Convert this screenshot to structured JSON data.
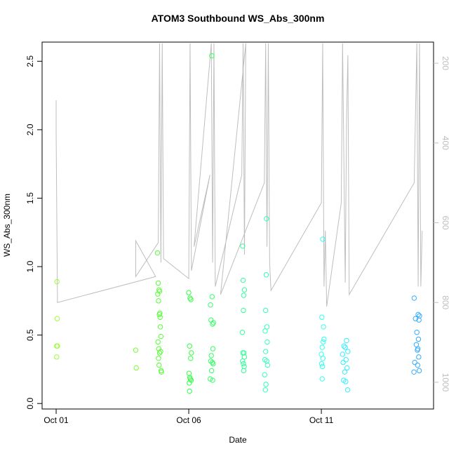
{
  "chart_data": {
    "type": "scatter",
    "title": "ATOM3 Southbound WS_Abs_300nm",
    "xlabel": "Date",
    "ylabel": "WS_Abs_300nm",
    "xlim": [
      -0.53,
      14.23
    ],
    "xticks": [
      {
        "value": 0,
        "label": "Oct 01"
      },
      {
        "value": 5,
        "label": "Oct 06"
      },
      {
        "value": 10,
        "label": "Oct 11"
      }
    ],
    "ylim": [
      -0.04,
      2.64
    ],
    "yticks": [
      {
        "value": 0,
        "label": "0.0"
      },
      0.5,
      {
        "value": 1,
        "label": "1.0"
      },
      1.5,
      {
        "value": 2,
        "label": "2.0"
      },
      2.5
    ],
    "y2lim": [
      1067,
      147
    ],
    "y2ticks": [
      200,
      400,
      600,
      800,
      1000
    ],
    "series": [
      {
        "color": "#99ff33",
        "x": [
          0.03,
          0.04,
          0.02,
          0.05,
          0.02
        ],
        "values": [
          0.89,
          0.62,
          0.42,
          0.42,
          0.34
        ]
      },
      {
        "color": "#77ff33",
        "x": [
          3.0,
          3.02
        ],
        "values": [
          0.39,
          0.26
        ]
      },
      {
        "color": "#55ff33",
        "x": [
          3.82,
          3.85,
          3.88,
          3.9,
          3.83,
          3.86,
          3.91,
          3.92,
          3.89,
          3.93,
          3.95,
          3.84,
          3.87,
          3.94,
          3.9,
          3.86,
          3.88,
          3.96,
          3.97
        ],
        "values": [
          1.1,
          0.88,
          0.83,
          0.82,
          0.8,
          0.75,
          0.66,
          0.63,
          0.65,
          0.56,
          0.49,
          0.45,
          0.4,
          0.38,
          0.37,
          0.33,
          0.28,
          0.24,
          0.23
        ]
      },
      {
        "color": "#33ff44",
        "x": [
          5.0,
          5.05,
          5.08,
          5.03,
          5.07,
          5.01,
          5.04,
          5.09,
          5.06,
          5.02,
          5.03,
          5.1
        ],
        "values": [
          0.81,
          0.77,
          0.76,
          0.42,
          0.33,
          0.22,
          0.19,
          0.17,
          0.18,
          0.15,
          0.09,
          0.37
        ]
      },
      {
        "color": "#33ff66",
        "x": [
          5.87,
          5.88,
          5.82,
          5.84,
          5.9,
          5.93,
          5.91,
          5.85,
          5.83,
          5.89,
          5.92,
          5.86,
          5.81,
          5.9
        ],
        "values": [
          2.54,
          0.78,
          0.72,
          0.61,
          0.58,
          0.59,
          0.4,
          0.35,
          0.31,
          0.3,
          0.29,
          0.24,
          0.18,
          0.17
        ]
      },
      {
        "color": "#33ff99",
        "x": [
          7.03,
          7.05,
          7.1,
          7.07,
          7.06,
          7.02,
          7.04,
          7.08,
          7.1,
          7.03,
          7.06,
          7.09,
          7.07
        ],
        "values": [
          1.15,
          0.9,
          0.83,
          0.79,
          0.68,
          0.52,
          0.37,
          0.37,
          0.34,
          0.31,
          0.29,
          0.27,
          0.24
        ]
      },
      {
        "color": "#33ffbb",
        "x": [
          7.93,
          7.92,
          7.9,
          7.95,
          7.88,
          7.96,
          7.9,
          7.87,
          7.94,
          7.97,
          7.86,
          7.91,
          7.89
        ],
        "values": [
          1.35,
          0.94,
          0.68,
          0.56,
          0.53,
          0.45,
          0.38,
          0.32,
          0.31,
          0.28,
          0.21,
          0.14,
          0.1
        ]
      },
      {
        "color": "#33ffee",
        "x": [
          10.05,
          10.02,
          10.08,
          10.1,
          10.07,
          10.03,
          10.0,
          10.06,
          10.01,
          10.04,
          10.03
        ],
        "values": [
          1.2,
          0.63,
          0.56,
          0.47,
          0.45,
          0.41,
          0.36,
          0.33,
          0.29,
          0.27,
          0.18
        ]
      },
      {
        "color": "#33eeff",
        "x": [
          10.95,
          10.85,
          10.9,
          11.0,
          10.8,
          10.93,
          10.82,
          10.97,
          10.88,
          10.84,
          10.92,
          10.99
        ],
        "values": [
          0.46,
          0.42,
          0.41,
          0.38,
          0.36,
          0.32,
          0.3,
          0.26,
          0.23,
          0.17,
          0.16,
          0.1
        ]
      },
      {
        "color": "#33aaff",
        "x": [
          13.5,
          13.65,
          13.7,
          13.55,
          13.68,
          13.6,
          13.66,
          13.58,
          13.64,
          13.62,
          13.67,
          13.52,
          13.63,
          13.69,
          13.49
        ],
        "values": [
          0.77,
          0.65,
          0.64,
          0.62,
          0.61,
          0.52,
          0.47,
          0.43,
          0.4,
          0.39,
          0.34,
          0.3,
          0.28,
          0.24,
          0.23
        ]
      },
      {
        "type": "line",
        "axis": "y2",
        "color": "#bebebe",
        "x": [
          0,
          0,
          0.05,
          3.75,
          3.0,
          3.0,
          3.85,
          3.9,
          3.95,
          4.0,
          4.05,
          5.0,
          5.05,
          5.1,
          5.8,
          5.2,
          5.85,
          5.9,
          5.95,
          6.0,
          7.0,
          7.05,
          7.1,
          7.15,
          6.2,
          7.85,
          7.9,
          7.95,
          8.0,
          8.05,
          8.1,
          10.0,
          10.05,
          10.1,
          10.15,
          10.2,
          10.75,
          10.8,
          10.9,
          10.95,
          11.0,
          11.05,
          13.5,
          13.6,
          13.65,
          13.7,
          13.75,
          13.8
        ],
        "values": [
          293,
          379,
          800,
          735,
          645,
          735,
          650,
          150,
          700,
          150,
          690,
          740,
          150,
          720,
          480,
          660,
          150,
          700,
          150,
          760,
          480,
          150,
          680,
          150,
          780,
          500,
          150,
          660,
          150,
          700,
          770,
          550,
          150,
          760,
          620,
          810,
          550,
          150,
          750,
          340,
          180,
          780,
          500,
          150,
          760,
          150,
          760,
          620
        ]
      }
    ]
  }
}
